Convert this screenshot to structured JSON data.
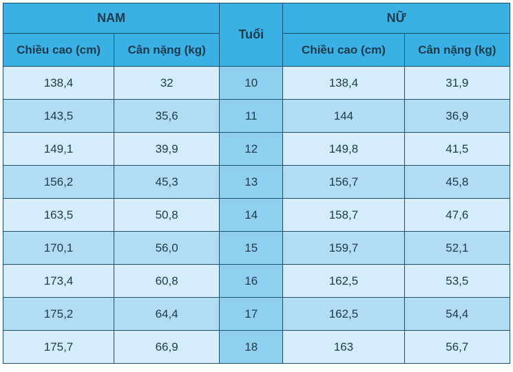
{
  "table": {
    "type": "table",
    "border_color": "#1b4e6b",
    "header_bg": "#3bb0e4",
    "row_odd_bg": "#d5edfa",
    "row_even_bg": "#b1dcf3",
    "mid_col_bg": "#8fcff0",
    "text_color": "#1b3a4a",
    "font_size_header_group": 18,
    "font_size_header_sub": 17,
    "font_size_cell": 17,
    "groups": {
      "male": "NAM",
      "age": "Tuổi",
      "female": "NỮ"
    },
    "sub_headers": {
      "height": "Chiều cao (cm)",
      "weight": "Cân nặng (kg)"
    },
    "col_widths_pct": [
      21,
      20,
      12,
      23,
      20
    ],
    "rows": [
      {
        "m_h": "138,4",
        "m_w": "32",
        "age": "10",
        "f_h": "138,4",
        "f_w": "31,9"
      },
      {
        "m_h": "143,5",
        "m_w": "35,6",
        "age": "11",
        "f_h": "144",
        "f_w": "36,9"
      },
      {
        "m_h": "149,1",
        "m_w": "39,9",
        "age": "12",
        "f_h": "149,8",
        "f_w": "41,5"
      },
      {
        "m_h": "156,2",
        "m_w": "45,3",
        "age": "13",
        "f_h": "156,7",
        "f_w": "45,8"
      },
      {
        "m_h": "163,5",
        "m_w": "50,8",
        "age": "14",
        "f_h": "158,7",
        "f_w": "47,6"
      },
      {
        "m_h": "170,1",
        "m_w": "56,0",
        "age": "15",
        "f_h": "159,7",
        "f_w": "52,1"
      },
      {
        "m_h": "173,4",
        "m_w": "60,8",
        "age": "16",
        "f_h": "162,5",
        "f_w": "53,5"
      },
      {
        "m_h": "175,2",
        "m_w": "64,4",
        "age": "17",
        "f_h": "162,5",
        "f_w": "54,4"
      },
      {
        "m_h": "175,7",
        "m_w": "66,9",
        "age": "18",
        "f_h": "163",
        "f_w": "56,7"
      }
    ]
  }
}
